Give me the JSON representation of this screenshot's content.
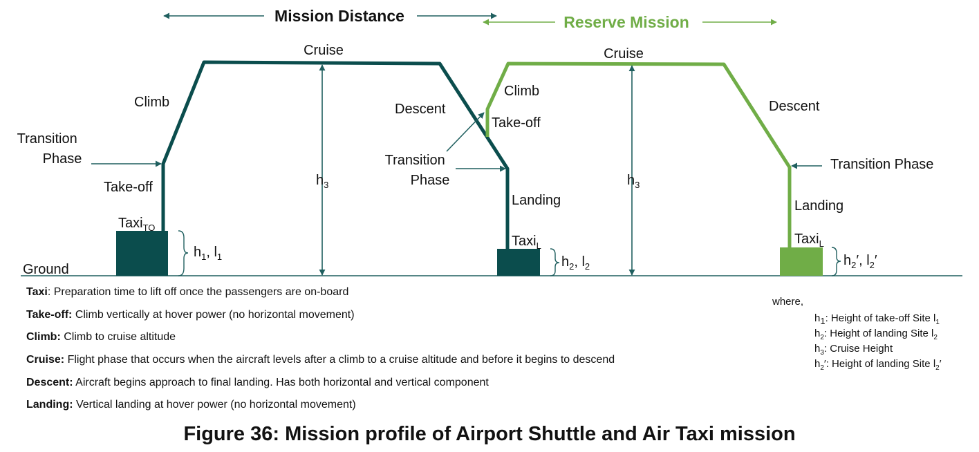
{
  "header": {
    "mission": "Mission Distance",
    "reserve": "Reserve Mission"
  },
  "colors": {
    "mission": "#0b4d4d",
    "reserve": "#70ad47",
    "arrow": "#1f5f5f"
  },
  "mission": {
    "cruise": "Cruise",
    "climb": "Climb",
    "transition": [
      "Transition",
      "Phase"
    ],
    "takeoff": "Take-off",
    "taxi": "Taxi",
    "taxi_sub": "TO",
    "h1": "h",
    "h1_sub": "1",
    "h1_sep": ", l",
    "h1_sub2": "1",
    "ground": "Ground",
    "h3": "h",
    "h3_sub": "3",
    "descent": "Descent",
    "transition2": [
      "Transition",
      "Phase"
    ],
    "landing": "Landing",
    "taxi_l": "Taxi",
    "taxi_l_sub": "L",
    "h2": "h",
    "h2_sub": "2",
    "h2_sep": ", l",
    "h2_sub2": "2"
  },
  "reserve": {
    "cruise": "Cruise",
    "climb": "Climb",
    "takeoff": "Take-off",
    "h3": "h",
    "h3_sub": "3",
    "descent": "Descent",
    "transition": "Transition Phase",
    "landing": "Landing",
    "taxi": "Taxi",
    "taxi_sub": "L",
    "h2": "h",
    "h2_sub": "2",
    "h2_sep": "′, l",
    "h2_sub2": "2",
    "h2_end": "′"
  },
  "where": {
    "title": "where,",
    "items": [
      {
        "sym": "h",
        "sub": "1",
        "text": ": Height of take-off Site l",
        "sub2": "1",
        "end": ""
      },
      {
        "sym": "h",
        "sub": "2",
        "text": ": Height of landing Site l",
        "sub2": "2",
        "end": ""
      },
      {
        "sym": "h",
        "sub": "3",
        "text": ": Cruise Height",
        "sub2": "",
        "end": ""
      },
      {
        "sym": "h",
        "sub": "2",
        "text": "′: Height of landing Site l",
        "sub2": "2",
        "end": "′"
      }
    ]
  },
  "definitions": [
    {
      "term": "Taxi",
      "desc": ": Preparation time to lift off once the passengers are on-board"
    },
    {
      "term": "Take-off:",
      "desc": " Climb vertically at hover power (no horizontal movement)"
    },
    {
      "term": "Climb:",
      "desc": " Climb to cruise altitude"
    },
    {
      "term": "Cruise:",
      "desc": " Flight phase that occurs when the aircraft levels after a climb to a cruise altitude and before it begins to descend"
    },
    {
      "term": "Descent:",
      "desc": " Aircraft begins approach to final landing. Has both horizontal and vertical component"
    },
    {
      "term": "Landing:",
      "desc": " Vertical landing at hover power (no horizontal movement)"
    }
  ],
  "caption": "Figure 36: Mission profile of Airport Shuttle and Air Taxi mission"
}
